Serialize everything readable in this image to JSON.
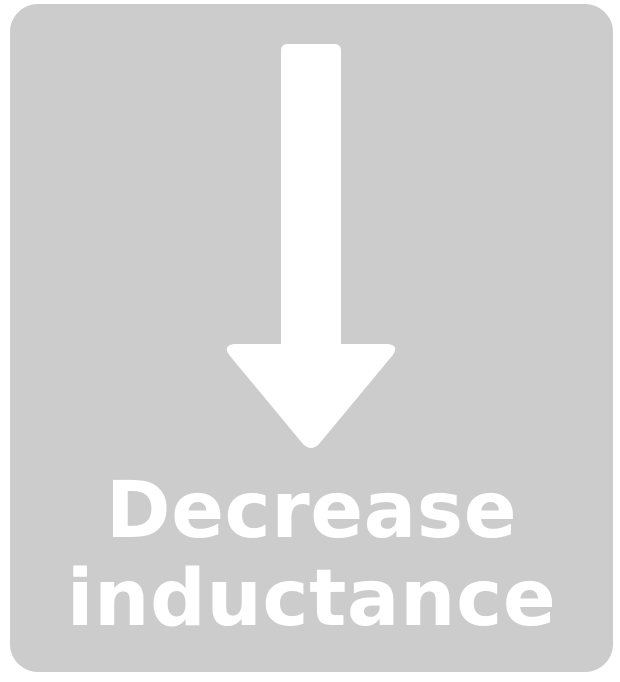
{
  "tile": {
    "background": "#cccccc",
    "foreground": "#ffffff",
    "icon": "arrow-down-icon",
    "label_line_1": "Decrease",
    "label_line_2": "inductance"
  }
}
